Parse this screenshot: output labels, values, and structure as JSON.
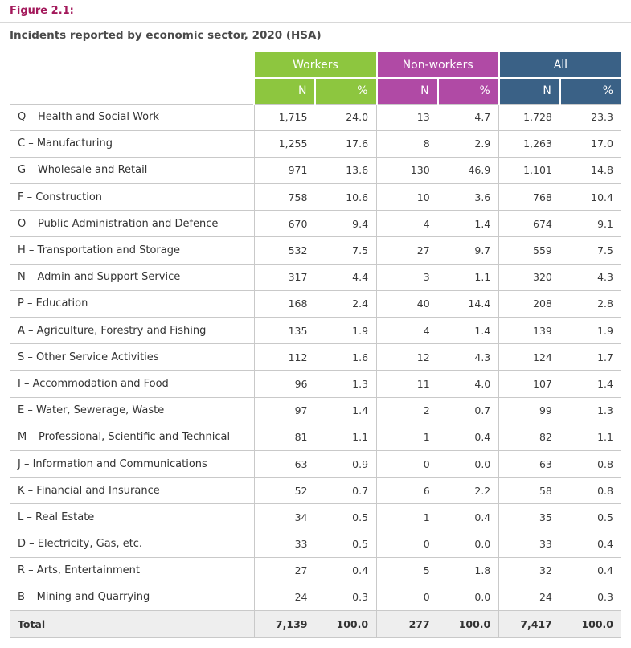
{
  "figure": {
    "label": "Figure 2.1:",
    "title": "Incidents reported by economic sector, 2020 (HSA)"
  },
  "colors": {
    "workers": "#8dc63f",
    "non_workers": "#b04aa5",
    "all": "#3a6186",
    "figure_label": "#a3195b"
  },
  "headers": {
    "groups": [
      "Workers",
      "Non-workers",
      "All"
    ],
    "sub": [
      "N",
      "%",
      "N",
      "%",
      "N",
      "%"
    ]
  },
  "rows": [
    {
      "sector": "Q – Health and Social Work",
      "wn": "1,715",
      "wp": "24.0",
      "nn": "13",
      "np": "4.7",
      "an": "1,728",
      "ap": "23.3"
    },
    {
      "sector": "C – Manufacturing",
      "wn": "1,255",
      "wp": "17.6",
      "nn": "8",
      "np": "2.9",
      "an": "1,263",
      "ap": "17.0"
    },
    {
      "sector": "G – Wholesale and Retail",
      "wn": "971",
      "wp": "13.6",
      "nn": "130",
      "np": "46.9",
      "an": "1,101",
      "ap": "14.8"
    },
    {
      "sector": "F – Construction",
      "wn": "758",
      "wp": "10.6",
      "nn": "10",
      "np": "3.6",
      "an": "768",
      "ap": "10.4"
    },
    {
      "sector": "O – Public Administration and Defence",
      "wn": "670",
      "wp": "9.4",
      "nn": "4",
      "np": "1.4",
      "an": "674",
      "ap": "9.1"
    },
    {
      "sector": "H – Transportation and Storage",
      "wn": "532",
      "wp": "7.5",
      "nn": "27",
      "np": "9.7",
      "an": "559",
      "ap": "7.5"
    },
    {
      "sector": "N – Admin and Support Service",
      "wn": "317",
      "wp": "4.4",
      "nn": "3",
      "np": "1.1",
      "an": "320",
      "ap": "4.3"
    },
    {
      "sector": "P – Education",
      "wn": "168",
      "wp": "2.4",
      "nn": "40",
      "np": "14.4",
      "an": "208",
      "ap": "2.8"
    },
    {
      "sector": "A – Agriculture, Forestry and Fishing",
      "wn": "135",
      "wp": "1.9",
      "nn": "4",
      "np": "1.4",
      "an": "139",
      "ap": "1.9"
    },
    {
      "sector": "S – Other Service Activities",
      "wn": "112",
      "wp": "1.6",
      "nn": "12",
      "np": "4.3",
      "an": "124",
      "ap": "1.7"
    },
    {
      "sector": "I – Accommodation and Food",
      "wn": "96",
      "wp": "1.3",
      "nn": "11",
      "np": "4.0",
      "an": "107",
      "ap": "1.4"
    },
    {
      "sector": "E – Water, Sewerage, Waste",
      "wn": "97",
      "wp": "1.4",
      "nn": "2",
      "np": "0.7",
      "an": "99",
      "ap": "1.3"
    },
    {
      "sector": "M – Professional, Scientific and Technical",
      "wn": "81",
      "wp": "1.1",
      "nn": "1",
      "np": "0.4",
      "an": "82",
      "ap": "1.1"
    },
    {
      "sector": "J – Information and Communications",
      "wn": "63",
      "wp": "0.9",
      "nn": "0",
      "np": "0.0",
      "an": "63",
      "ap": "0.8"
    },
    {
      "sector": "K – Financial and Insurance",
      "wn": "52",
      "wp": "0.7",
      "nn": "6",
      "np": "2.2",
      "an": "58",
      "ap": "0.8"
    },
    {
      "sector": "L – Real Estate",
      "wn": "34",
      "wp": "0.5",
      "nn": "1",
      "np": "0.4",
      "an": "35",
      "ap": "0.5"
    },
    {
      "sector": "D – Electricity, Gas, etc.",
      "wn": "33",
      "wp": "0.5",
      "nn": "0",
      "np": "0.0",
      "an": "33",
      "ap": "0.4"
    },
    {
      "sector": "R – Arts, Entertainment",
      "wn": "27",
      "wp": "0.4",
      "nn": "5",
      "np": "1.8",
      "an": "32",
      "ap": "0.4"
    },
    {
      "sector": "B – Mining and Quarrying",
      "wn": "24",
      "wp": "0.3",
      "nn": "0",
      "np": "0.0",
      "an": "24",
      "ap": "0.3"
    }
  ],
  "total": {
    "sector": "Total",
    "wn": "7,139",
    "wp": "100.0",
    "nn": "277",
    "np": "100.0",
    "an": "7,417",
    "ap": "100.0"
  }
}
